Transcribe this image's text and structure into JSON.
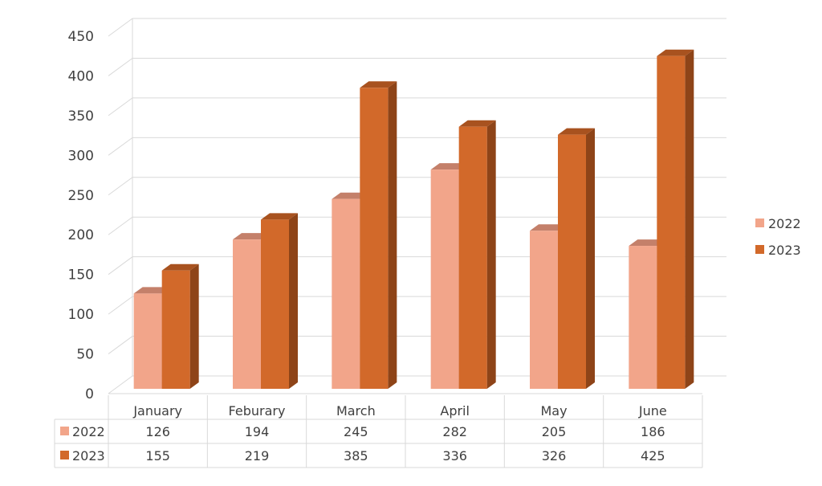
{
  "chart_data": {
    "type": "bar",
    "title": "",
    "xlabel": "",
    "ylabel": "",
    "categories": [
      "January",
      "Feburary",
      "March",
      "April",
      "May",
      "June"
    ],
    "series": [
      {
        "name": "2022",
        "values": [
          126,
          194,
          245,
          282,
          205,
          186
        ],
        "color": "#F2A58A",
        "top_color": "#C4806A",
        "side_color": "#B97B63"
      },
      {
        "name": "2023",
        "values": [
          155,
          219,
          385,
          336,
          326,
          425
        ],
        "color": "#D2692A",
        "top_color": "#A8521F",
        "side_color": "#8E4418"
      }
    ],
    "ylim": [
      0,
      450
    ],
    "yticks": [
      0,
      50,
      100,
      150,
      200,
      250,
      300,
      350,
      400,
      450
    ],
    "grid": true,
    "legend": "right",
    "data_table": true,
    "style": "3d-clustered-column"
  }
}
